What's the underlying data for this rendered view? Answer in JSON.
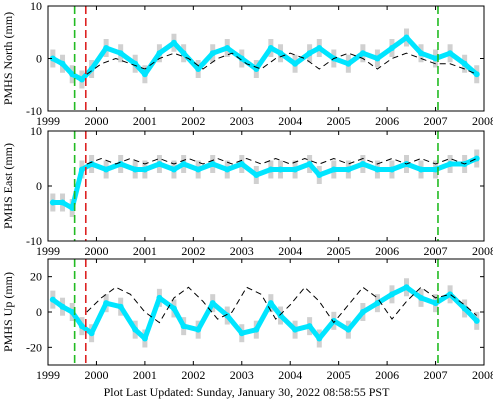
{
  "chart_data": [
    {
      "type": "scatter",
      "ylabel": "PMHS North (mm)",
      "xlim": [
        1999,
        2008
      ],
      "ylim": [
        -10,
        10
      ],
      "xticks": [
        1999,
        2000,
        2001,
        2002,
        2003,
        2004,
        2005,
        2006,
        2007,
        2008
      ],
      "yticks": [
        -10,
        0,
        10
      ],
      "vlines": [
        {
          "x": 1999.55,
          "color": "#22bb22",
          "style": "dashed"
        },
        {
          "x": 1999.78,
          "color": "#dd2222",
          "style": "dashed"
        },
        {
          "x": 2007.05,
          "color": "#22bb22",
          "style": "dashed"
        }
      ],
      "series": [
        {
          "kind": "points",
          "color": "#00e5ff",
          "errorbar_color": "#aaaaaa",
          "x": [
            1999.1,
            1999.3,
            1999.5,
            1999.7,
            1999.9,
            2000.2,
            2000.5,
            2000.8,
            2001.0,
            2001.3,
            2001.6,
            2001.8,
            2002.1,
            2002.4,
            2002.7,
            2003.0,
            2003.3,
            2003.6,
            2003.8,
            2004.1,
            2004.4,
            2004.6,
            2004.9,
            2005.2,
            2005.5,
            2005.8,
            2006.1,
            2006.4,
            2006.7,
            2007.0,
            2007.3,
            2007.6,
            2007.85
          ],
          "y": [
            0,
            -1,
            -3,
            -4,
            -2,
            2,
            1,
            -1,
            -3,
            1,
            3,
            1,
            -2,
            1,
            2,
            0,
            -2,
            2,
            1,
            -1,
            1,
            2,
            0,
            -1,
            1,
            0,
            2,
            4,
            1,
            0,
            1,
            -1,
            -3
          ]
        },
        {
          "kind": "model",
          "color": "#000000",
          "style": "dashed",
          "x": [
            1999.8,
            2000.1,
            2000.4,
            2000.7,
            2001.0,
            2001.3,
            2001.6,
            2001.9,
            2002.2,
            2002.5,
            2002.8,
            2003.1,
            2003.4,
            2003.7,
            2004.0,
            2004.3,
            2004.6,
            2004.9,
            2005.2,
            2005.5,
            2005.8,
            2006.1,
            2006.4,
            2006.7,
            2007.0,
            2007.3,
            2007.6,
            2007.85
          ],
          "y": [
            -3,
            -1,
            0,
            -1,
            -2,
            0,
            1,
            0,
            -2,
            0,
            1,
            -1,
            -2,
            0,
            1,
            0,
            -2,
            0,
            1,
            0,
            -2,
            0,
            1,
            0,
            -1,
            -1,
            -2,
            -3
          ]
        }
      ]
    },
    {
      "type": "scatter",
      "ylabel": "PMHS East (mm)",
      "xlim": [
        1999,
        2008
      ],
      "ylim": [
        -10,
        10
      ],
      "xticks": [
        1999,
        2000,
        2001,
        2002,
        2003,
        2004,
        2005,
        2006,
        2007,
        2008
      ],
      "yticks": [
        -10,
        0,
        10
      ],
      "vlines": [
        {
          "x": 1999.55,
          "color": "#22bb22",
          "style": "dashed"
        },
        {
          "x": 1999.78,
          "color": "#dd2222",
          "style": "dashed"
        },
        {
          "x": 2007.05,
          "color": "#22bb22",
          "style": "dashed"
        }
      ],
      "series": [
        {
          "kind": "points",
          "color": "#00e5ff",
          "errorbar_color": "#aaaaaa",
          "x": [
            1999.1,
            1999.3,
            1999.5,
            1999.7,
            1999.9,
            2000.2,
            2000.5,
            2000.8,
            2001.0,
            2001.3,
            2001.6,
            2001.8,
            2002.1,
            2002.4,
            2002.7,
            2003.0,
            2003.3,
            2003.6,
            2003.8,
            2004.1,
            2004.4,
            2004.6,
            2004.9,
            2005.2,
            2005.5,
            2005.8,
            2006.1,
            2006.4,
            2006.7,
            2007.0,
            2007.3,
            2007.6,
            2007.85
          ],
          "y": [
            -3,
            -3,
            -4,
            3,
            4,
            3,
            4,
            3,
            3,
            4,
            3,
            4,
            3,
            4,
            3,
            4,
            2,
            3,
            3,
            3,
            4,
            2,
            3,
            3,
            4,
            3,
            3,
            4,
            3,
            3,
            4,
            4,
            5
          ]
        },
        {
          "kind": "model",
          "color": "#000000",
          "style": "dashed",
          "x": [
            1999.8,
            2000.1,
            2000.4,
            2000.7,
            2001.0,
            2001.3,
            2001.6,
            2001.9,
            2002.2,
            2002.5,
            2002.8,
            2003.1,
            2003.4,
            2003.7,
            2004.0,
            2004.3,
            2004.6,
            2004.9,
            2005.2,
            2005.5,
            2005.8,
            2006.1,
            2006.4,
            2006.7,
            2007.0,
            2007.3,
            2007.6,
            2007.85
          ],
          "y": [
            4,
            5,
            4,
            5,
            4,
            5,
            4,
            5,
            4,
            5,
            4,
            5,
            4,
            5,
            4,
            5,
            4,
            5,
            4,
            5,
            4,
            5,
            4,
            5,
            4,
            5,
            4,
            5
          ]
        }
      ]
    },
    {
      "type": "scatter",
      "ylabel": "PMHS Up (mm)",
      "xlim": [
        1999,
        2008
      ],
      "ylim": [
        -30,
        30
      ],
      "xticks": [
        1999,
        2000,
        2001,
        2002,
        2003,
        2004,
        2005,
        2006,
        2007,
        2008
      ],
      "yticks": [
        -20,
        0,
        20
      ],
      "vlines": [
        {
          "x": 1999.55,
          "color": "#22bb22",
          "style": "dashed"
        },
        {
          "x": 1999.78,
          "color": "#dd2222",
          "style": "dashed"
        },
        {
          "x": 2007.05,
          "color": "#22bb22",
          "style": "dashed"
        }
      ],
      "series": [
        {
          "kind": "points",
          "color": "#00e5ff",
          "errorbar_color": "#aaaaaa",
          "x": [
            1999.1,
            1999.3,
            1999.5,
            1999.7,
            1999.9,
            2000.2,
            2000.5,
            2000.8,
            2001.0,
            2001.3,
            2001.6,
            2001.8,
            2002.1,
            2002.4,
            2002.7,
            2003.0,
            2003.3,
            2003.6,
            2003.8,
            2004.1,
            2004.4,
            2004.6,
            2004.9,
            2005.2,
            2005.5,
            2005.8,
            2006.1,
            2006.4,
            2006.7,
            2007.0,
            2007.3,
            2007.6,
            2007.85
          ],
          "y": [
            7,
            3,
            0,
            -8,
            -12,
            5,
            3,
            -10,
            -15,
            8,
            2,
            -8,
            -10,
            5,
            -2,
            -12,
            -10,
            5,
            -2,
            -10,
            -8,
            -15,
            -5,
            -10,
            0,
            5,
            10,
            14,
            8,
            5,
            10,
            2,
            -5
          ]
        },
        {
          "kind": "model",
          "color": "#000000",
          "style": "dashed",
          "x": [
            1999.8,
            2000.1,
            2000.4,
            2000.7,
            2001.0,
            2001.3,
            2001.6,
            2001.9,
            2002.2,
            2002.5,
            2002.8,
            2003.1,
            2003.4,
            2003.7,
            2004.0,
            2004.3,
            2004.6,
            2004.9,
            2005.2,
            2005.5,
            2005.8,
            2006.1,
            2006.4,
            2006.7,
            2007.0,
            2007.3,
            2007.6,
            2007.85
          ],
          "y": [
            0,
            8,
            14,
            10,
            0,
            -6,
            8,
            14,
            6,
            -4,
            0,
            14,
            10,
            -4,
            4,
            14,
            6,
            -6,
            4,
            14,
            8,
            -4,
            6,
            14,
            8,
            10,
            4,
            -2
          ]
        }
      ]
    }
  ],
  "footer": {
    "text": "Plot Last Updated:   Sunday, January 30, 2022 08:58:55 PST"
  }
}
